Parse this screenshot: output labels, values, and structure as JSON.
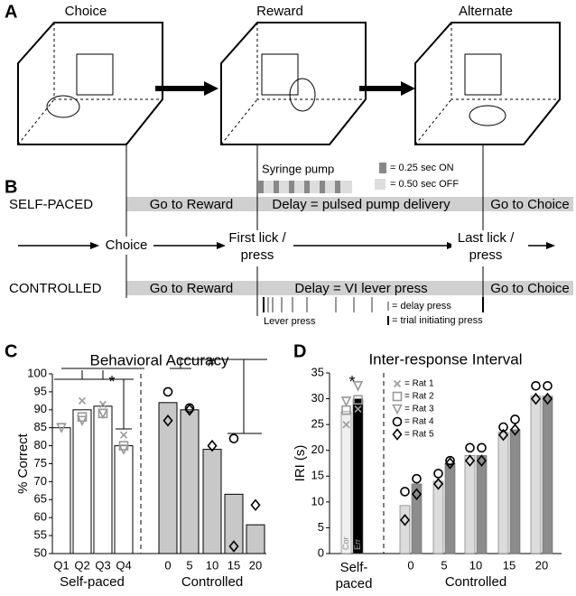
{
  "panels": {
    "A": "A",
    "B": "B",
    "C": "C",
    "D": "D"
  },
  "diagram": {
    "stages": [
      "Choice",
      "Reward",
      "Alternate"
    ],
    "self_paced": {
      "label": "SELF-PACED",
      "segments": [
        "Go to Reward",
        "Delay = pulsed pump delivery",
        "Go to Choice"
      ],
      "pump": "Syringe pump",
      "on": "= 0.25 sec ON",
      "off": "= 0.50 sec OFF"
    },
    "events": [
      "Choice",
      "First lick /",
      "press",
      "Last lick /",
      "press"
    ],
    "controlled": {
      "label": "CONTROLLED",
      "segments": [
        "Go to Reward",
        "Delay = VI lever press",
        "Go to Choice"
      ],
      "lever": "Lever press",
      "delay_press": "= delay press",
      "trial_press": "= trial initiating press"
    }
  },
  "chart_data": [
    {
      "type": "bar",
      "title": "Behavioral Accuracy",
      "y_label": "% Correct",
      "groups": [
        "Self-paced",
        "Controlled"
      ],
      "categories": [
        "Q1",
        "Q2",
        "Q3",
        "Q4",
        "0",
        "5",
        "10",
        "15",
        "20"
      ],
      "series": [
        {
          "color": "#ffffff",
          "values": [
            85,
            90,
            91,
            80,
            null,
            null,
            null,
            null,
            null
          ]
        },
        {
          "color": "#c8c8c8",
          "values": [
            null,
            null,
            null,
            null,
            92,
            90,
            79,
            66.5,
            58
          ]
        }
      ],
      "markers": [
        {
          "shape": "x",
          "values": [
            null,
            92.5,
            91.5,
            83,
            null,
            null,
            null,
            null,
            null
          ]
        },
        {
          "shape": "square",
          "values": [
            null,
            88,
            89,
            80,
            null,
            null,
            null,
            null,
            null
          ]
        },
        {
          "shape": "triangle",
          "values": [
            85,
            87,
            89,
            79,
            null,
            null,
            null,
            null,
            null
          ]
        },
        {
          "shape": "circle",
          "values": [
            null,
            null,
            null,
            null,
            95,
            90.5,
            null,
            82,
            null
          ]
        },
        {
          "shape": "diamond",
          "values": [
            null,
            null,
            null,
            null,
            87,
            90,
            80,
            52,
            63.5
          ]
        }
      ],
      "annotations": [
        "*",
        "#"
      ],
      "ylim": [
        50,
        100
      ],
      "yticks": [
        50,
        55,
        60,
        65,
        70,
        75,
        80,
        85,
        90,
        95,
        100
      ]
    },
    {
      "type": "bar",
      "title": "Inter-response Interval",
      "y_label": "IRI (s)",
      "groups": [
        "Self-",
        "paced",
        "Controlled"
      ],
      "categories": [
        null,
        "0",
        "5",
        "10",
        "15",
        "20"
      ],
      "series": [
        {
          "name": "Cor",
          "colors": [
            "#f0f0f0",
            "#dcdcdc",
            "#dcdcdc",
            "#dcdcdc",
            "#dcdcdc",
            "#dcdcdc"
          ],
          "values": [
            27.5,
            9.3,
            14,
            19,
            23.5,
            30.5
          ]
        },
        {
          "name": "Err",
          "colors": [
            "#000000",
            "#8c8c8c",
            "#8c8c8c",
            "#8c8c8c",
            "#8c8c8c",
            "#8c8c8c"
          ],
          "values": [
            30,
            13.5,
            17.5,
            19,
            24,
            30.5
          ]
        }
      ],
      "markers": [
        {
          "name": "= Rat 1",
          "shape": "x",
          "cor": [
            25,
            null,
            null,
            null,
            null,
            null
          ],
          "err": [
            28,
            null,
            null,
            null,
            null,
            null
          ]
        },
        {
          "name": "= Rat 2",
          "shape": "square",
          "cor": [
            27.8,
            null,
            null,
            null,
            null,
            null
          ],
          "err": [
            29.8,
            null,
            null,
            null,
            null,
            null
          ]
        },
        {
          "name": "= Rat 3",
          "shape": "triangle",
          "cor": [
            29.5,
            null,
            null,
            null,
            null,
            null
          ],
          "err": [
            32.5,
            null,
            null,
            null,
            null,
            null
          ]
        },
        {
          "name": "= Rat 4",
          "shape": "circle",
          "cor": [
            null,
            12,
            15.5,
            20.5,
            24.5,
            32.5
          ],
          "err": [
            null,
            14.5,
            18,
            20.5,
            26,
            32.5
          ]
        },
        {
          "name": "= Rat 5",
          "shape": "diamond",
          "cor": [
            null,
            6.5,
            13.5,
            18,
            23,
            30
          ],
          "err": [
            null,
            11.5,
            17.5,
            18,
            24,
            30
          ]
        }
      ],
      "annotations": [
        "*"
      ],
      "ylim": [
        0,
        35
      ],
      "yticks": [
        0,
        5,
        10,
        15,
        20,
        25,
        30,
        35
      ]
    }
  ]
}
